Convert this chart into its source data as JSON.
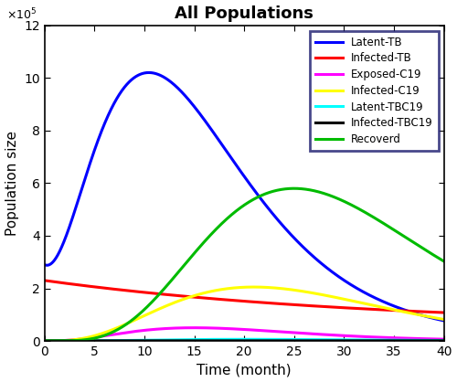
{
  "title": "All Populations",
  "xlabel": "Time (month)",
  "ylabel": "Population size",
  "xlim": [
    0,
    40
  ],
  "ylim": [
    0,
    1200000
  ],
  "legend_entries": [
    {
      "label": "Latent-TB",
      "color": "#0000FF"
    },
    {
      "label": "Infected-TB",
      "color": "#FF0000"
    },
    {
      "label": "Exposed-C19",
      "color": "#FF00FF"
    },
    {
      "label": "Infected-C19",
      "color": "#FFFF00"
    },
    {
      "label": "Latent-TBC19",
      "color": "#00FFFF"
    },
    {
      "label": "Infected-TBC19",
      "color": "#000000"
    },
    {
      "label": "Recoverd",
      "color": "#00BB00"
    }
  ],
  "lw": 2.2,
  "figsize": [
    5.0,
    4.18
  ],
  "dpi": 100,
  "yticks": [
    0,
    200000,
    400000,
    600000,
    800000,
    1000000,
    1200000
  ],
  "xticks": [
    0,
    5,
    10,
    15,
    20,
    25,
    30,
    35,
    40
  ],
  "background": "#FFFFFF",
  "legend_edgecolor": "#1a1a6e"
}
